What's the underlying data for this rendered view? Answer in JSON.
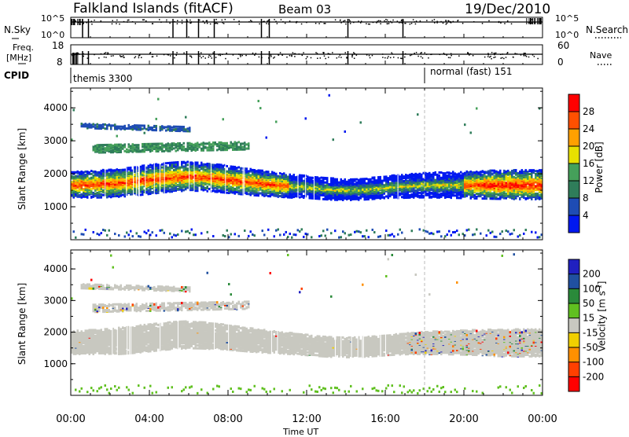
{
  "header": {
    "station": "Falkland Islands (fitACF)",
    "beam": "Beam 03",
    "date": "19/Dec/2010"
  },
  "nsky_panel": {
    "left_label": "N.Sky",
    "right_label": "N.Search",
    "left_ticks": [
      "10^5",
      "10^0"
    ],
    "right_ticks": [
      "10^5",
      "10^0"
    ]
  },
  "freq_panel": {
    "left_label_line1": "Freq.",
    "left_label_line2": "[MHz]",
    "right_label": "Nave",
    "left_ticks": [
      "18",
      "8"
    ],
    "right_ticks": [
      "60",
      "0"
    ]
  },
  "cpid_panel": {
    "label": "CPID",
    "segments": [
      {
        "name": "themis 3300",
        "start_hour": 0.0
      },
      {
        "name": "normal (fast) 151",
        "start_hour": 18.0
      }
    ]
  },
  "chart_data": [
    {
      "type": "heatmap",
      "panel": "power",
      "ylabel": "Slant Range [km]",
      "xlabel": "",
      "xlim_hours": [
        0,
        24
      ],
      "ylim_km": [
        0,
        4600
      ],
      "y_ticks": [
        1000,
        2000,
        3000,
        4000
      ],
      "colorbar_label": "Power [dB]",
      "colorbar_ticks": [
        4,
        8,
        12,
        16,
        20,
        24,
        28
      ],
      "colorbar_colors": [
        "#0018f0",
        "#1e4cb4",
        "#2f7d5a",
        "#45a05a",
        "#e8e000",
        "#ffa000",
        "#ff5000",
        "#ff0000"
      ],
      "echo_bands": [
        {
          "t0": 0.0,
          "t1": 24.0,
          "center_km_start": 1700,
          "center_km_end": 1600,
          "width_km": 650,
          "peak_db": 28
        },
        {
          "t0": 1.0,
          "t1": 9.0,
          "center_km_start": 2800,
          "center_km_end": 2900,
          "width_km": 250,
          "peak_db": 14
        },
        {
          "t0": 0.5,
          "t1": 6.0,
          "center_km_start": 3500,
          "center_km_end": 3400,
          "width_km": 150,
          "peak_db": 8
        }
      ]
    },
    {
      "type": "heatmap",
      "panel": "velocity",
      "ylabel": "Slant Range [km]",
      "xlabel": "Time UT",
      "xlim_hours": [
        0,
        24
      ],
      "ylim_km": [
        0,
        4600
      ],
      "y_ticks": [
        1000,
        2000,
        3000,
        4000
      ],
      "x_tick_labels": [
        "00:00",
        "04:00",
        "08:00",
        "12:00",
        "16:00",
        "20:00",
        "00:00"
      ],
      "colorbar_label": "Velocity [m s^-1]",
      "colorbar_ticks": [
        200,
        100,
        50,
        15,
        -15,
        -50,
        -100,
        -200
      ],
      "colorbar_colors": [
        "#2020c0",
        "#2050a0",
        "#2a8a3a",
        "#60c020",
        "#c8c8c0",
        "#f0d000",
        "#ff9000",
        "#ff4000",
        "#ff0000"
      ],
      "dominant_value_range": [
        -15,
        15
      ]
    }
  ]
}
